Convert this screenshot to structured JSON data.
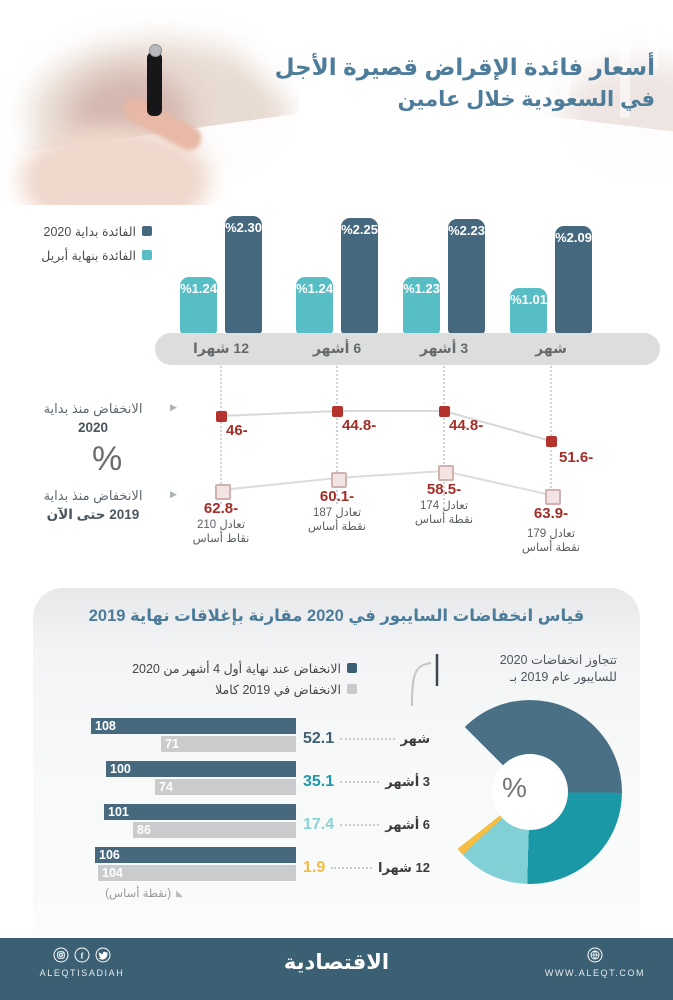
{
  "header": {
    "title_line1": "أسعار فائدة الإقراض قصيرة الأجل",
    "title_line2": "في السعودية خلال عامين"
  },
  "colors": {
    "accent_blue": "#4d7d9b",
    "bar_dark": "#45687e",
    "bar_teal": "#57bec6",
    "red_value": "#a42d28",
    "marker_red": "#b5332d",
    "hbar_dark": "#47697e",
    "hbar_gray": "#c9cbcc",
    "donut_dark": "#4a7086",
    "donut_teal": "#1b98a5",
    "donut_light": "#80d0d5",
    "donut_yellow": "#f5bd41",
    "footer_bg": "#3c6073"
  },
  "rates_chart": {
    "legend": [
      {
        "label": "الفائدة بداية 2020",
        "color": "#45687e"
      },
      {
        "label": "الفائدة بنهاية أبريل",
        "color": "#57bec6"
      }
    ],
    "categories": [
      "12 شهرا",
      "6 أشهر",
      "3 أشهر",
      "شهر"
    ],
    "start_2020_labels": [
      "%2.30",
      "%2.25",
      "%2.23",
      "%2.09"
    ],
    "end_april_labels": [
      "%1.24",
      "%1.24",
      "%1.23",
      "%1.01"
    ]
  },
  "decline_chart": {
    "axis_label_2020_line1": "الانخفاض منذ بداية",
    "axis_label_2020_line2": "2020",
    "percent_symbol": "%",
    "axis_label_2019_line1": "الانخفاض منذ بداية",
    "axis_label_2019_line2": "2019 حتى الآن",
    "since_2020_labels": [
      "46-",
      "44.8-",
      "44.8-",
      "51.6-"
    ],
    "since_2019_labels": [
      "62.8-",
      "60.1-",
      "58.5-",
      "63.9-"
    ],
    "notes": [
      [
        "تعادل 210",
        "نقاط أساس"
      ],
      [
        "تعادل 187",
        "نقطة أساس"
      ],
      [
        "تعادل 174",
        "نقطة أساس"
      ],
      [
        "تعادل 179",
        "نقطة أساس"
      ]
    ]
  },
  "saibor_section": {
    "title": "قياس انخفاضات السايبور في 2020 مقارنة بإغلاقات نهاية 2019",
    "legend": [
      {
        "label": "الانخفاض عند نهاية أول 4 أشهر من 2020",
        "color": "#3a5e73"
      },
      {
        "label": "الانخفاض في 2019 كاملا",
        "color": "#c7c9cb"
      }
    ],
    "annotation_line1": "تتجاوز انخفاضات 2020",
    "annotation_line2": "للسايبور عام 2019 بـ",
    "rows": [
      {
        "label": "شهر",
        "bar_2020": 108,
        "bar_2019": 71,
        "excess": "52.1",
        "color": "#3f5e73"
      },
      {
        "label": "3 أشهر",
        "bar_2020": 100,
        "bar_2019": 74,
        "excess": "35.1",
        "color": "#1d9aa8"
      },
      {
        "label": "6 أشهر",
        "bar_2020": 101,
        "bar_2019": 86,
        "excess": "17.4",
        "color": "#8ad2d6"
      },
      {
        "label": "12 شهرا",
        "bar_2020": 106,
        "bar_2019": 104,
        "excess": "1.9",
        "color": "#f2bc45"
      }
    ],
    "unit_note": "(نقطة أساس)",
    "donut_center_symbol": "%"
  },
  "footer": {
    "brand": "الاقتصادية",
    "social_handle": "ALEQTISADIAH",
    "website": "WWW.ALEQT.COM"
  },
  "chart_data": [
    {
      "type": "bar",
      "title": "أسعار فائدة الإقراض قصيرة الأجل في السعودية خلال عامين",
      "categories": [
        "12 شهرا",
        "6 أشهر",
        "3 أشهر",
        "شهر"
      ],
      "series": [
        {
          "name": "الفائدة بداية 2020",
          "values": [
            2.3,
            2.25,
            2.23,
            2.09
          ]
        },
        {
          "name": "الفائدة بنهاية أبريل",
          "values": [
            1.24,
            1.24,
            1.23,
            1.01
          ]
        }
      ],
      "unit": "%",
      "ylim": [
        0,
        2.5
      ],
      "grid": false,
      "legend_position": "left"
    },
    {
      "type": "line",
      "categories": [
        "12 شهرا",
        "6 أشهر",
        "3 أشهر",
        "شهر"
      ],
      "series": [
        {
          "name": "الانخفاض منذ بداية 2020",
          "values": [
            -46,
            -44.8,
            -44.8,
            -51.6
          ]
        },
        {
          "name": "الانخفاض منذ بداية 2019 حتى الآن",
          "values": [
            -62.8,
            -60.1,
            -58.5,
            -63.9
          ]
        }
      ],
      "unit": "%",
      "annotations": [
        "تعادل 210 نقاط أساس",
        "تعادل 187 نقطة أساس",
        "تعادل 174 نقطة أساس",
        "تعادل 179 نقطة أساس"
      ],
      "grid": false
    },
    {
      "type": "bar",
      "orientation": "horizontal",
      "title": "قياس انخفاضات السايبور في 2020 مقارنة بإغلاقات نهاية 2019",
      "categories": [
        "شهر",
        "3 أشهر",
        "6 أشهر",
        "12 شهرا"
      ],
      "series": [
        {
          "name": "الانخفاض عند نهاية أول 4 أشهر من 2020",
          "values": [
            108,
            100,
            101,
            106
          ]
        },
        {
          "name": "الانخفاض في 2019 كاملا",
          "values": [
            71,
            74,
            86,
            104
          ]
        }
      ],
      "unit": "نقطة أساس"
    },
    {
      "type": "pie",
      "donut": true,
      "title": "تتجاوز انخفاضات 2020 للسايبور عام 2019 بـ",
      "labels": [
        "شهر",
        "3 أشهر",
        "6 أشهر",
        "12 شهرا"
      ],
      "values": [
        52.1,
        35.1,
        17.4,
        1.9
      ],
      "unit": "%"
    }
  ]
}
